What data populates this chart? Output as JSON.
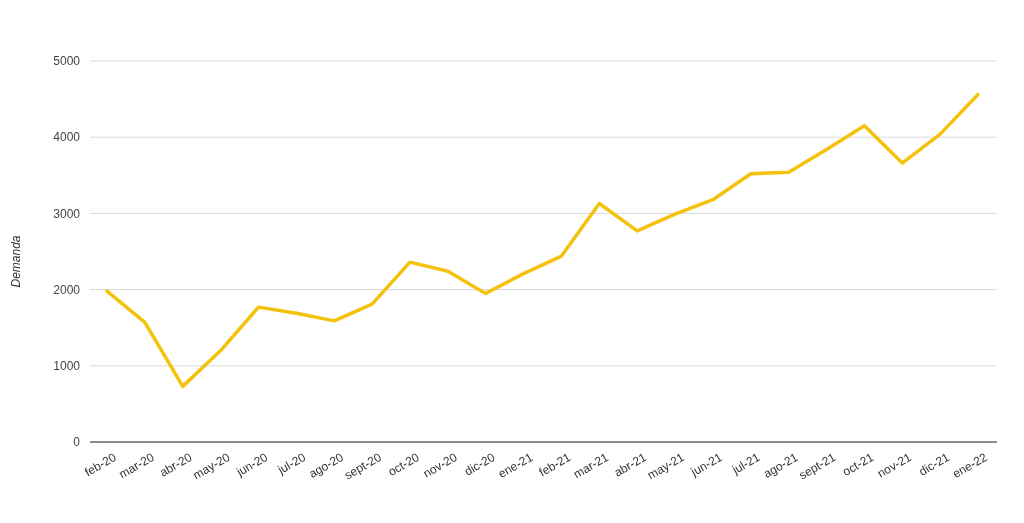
{
  "chart_data": {
    "type": "line",
    "ylabel": "Demanda",
    "categories": [
      "feb-20",
      "mar-20",
      "abr-20",
      "may-20",
      "jun-20",
      "jul-20",
      "ago-20",
      "sept-20",
      "oct-20",
      "nov-20",
      "dic-20",
      "ene-21",
      "feb-21",
      "mar-21",
      "abr-21",
      "may-21",
      "jun-21",
      "jul-21",
      "ago-21",
      "sept-21",
      "oct-21",
      "nov-21",
      "dic-21",
      "ene-22"
    ],
    "series": [
      {
        "color": "#f4c20d",
        "values": [
          1980,
          1570,
          730,
          1200,
          1770,
          1690,
          1590,
          1810,
          2360,
          2240,
          1950,
          2210,
          2440,
          3130,
          2770,
          2990,
          3180,
          3520,
          3540,
          3840,
          4150,
          3660,
          4040,
          4560
        ]
      }
    ],
    "ylim": [
      0,
      5000
    ],
    "yticks": [
      0,
      1000,
      2000,
      3000,
      4000,
      5000
    ],
    "grid": "y",
    "marker": "none",
    "line_style": "solid"
  }
}
